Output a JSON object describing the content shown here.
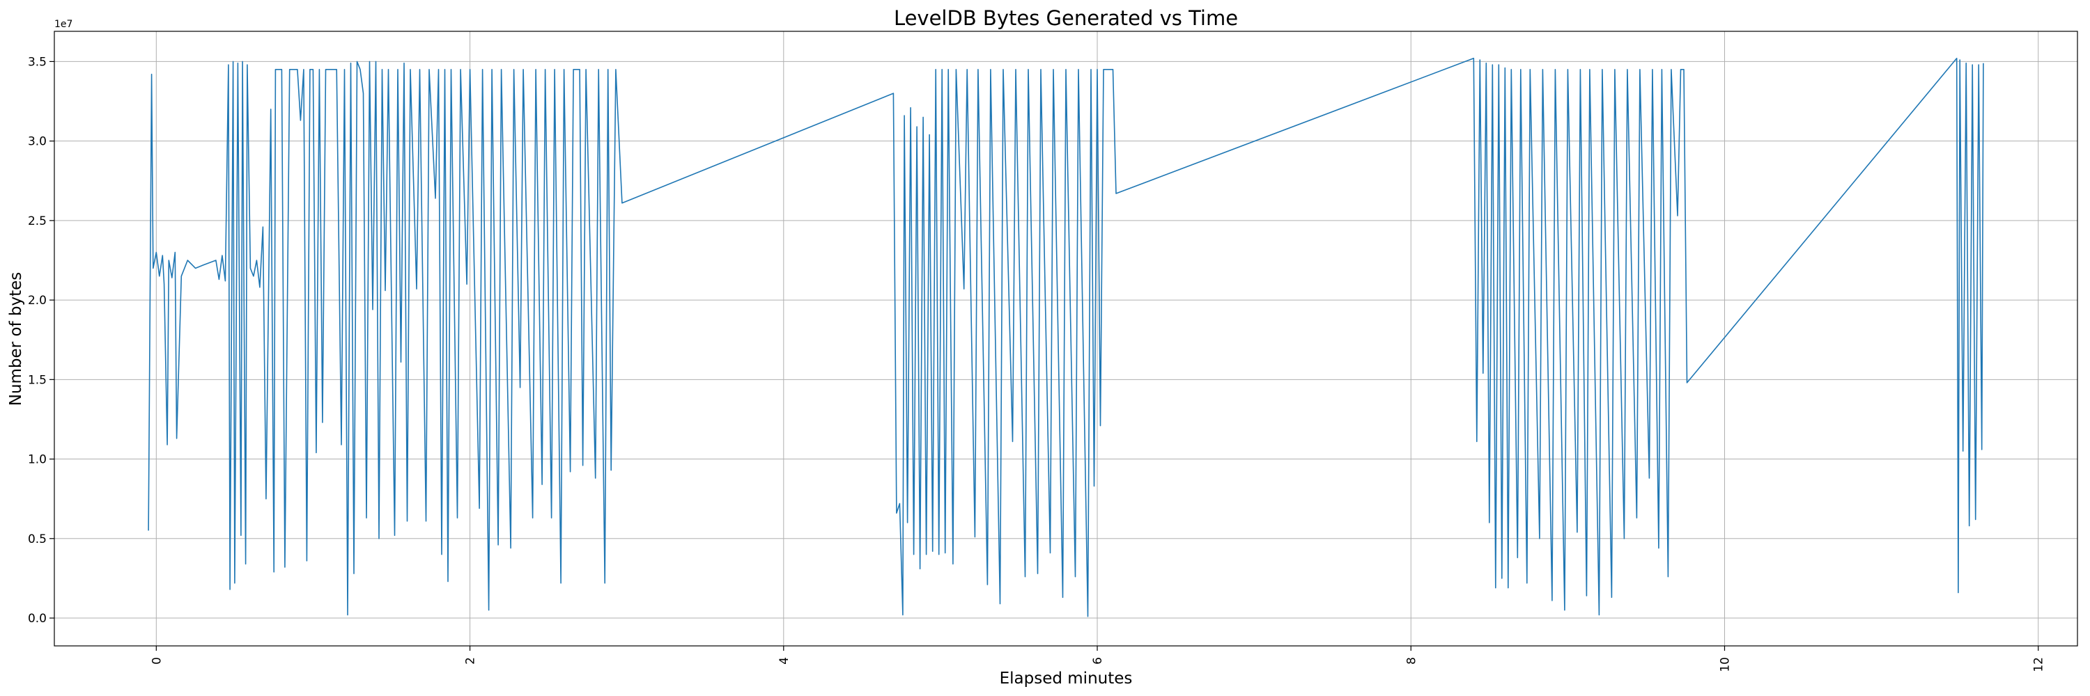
{
  "chart_data": {
    "type": "line",
    "title": "LevelDB Bytes Generated vs Time",
    "xlabel": "Elapsed minutes",
    "ylabel": "Number of bytes",
    "y_offset_label": "1e7",
    "xlim": [
      -0.65,
      12.25
    ],
    "ylim": [
      -1750000,
      36900000
    ],
    "x_ticks": [
      0,
      2,
      4,
      6,
      8,
      10,
      12
    ],
    "x_tick_labels": [
      "0",
      "2",
      "4",
      "6",
      "8",
      "10",
      "12"
    ],
    "y_ticks": [
      0,
      5000000,
      10000000,
      15000000,
      20000000,
      25000000,
      30000000,
      35000000
    ],
    "y_tick_labels": [
      "0.0",
      "0.5",
      "1.0",
      "1.5",
      "2.0",
      "2.5",
      "3.0",
      "3.5"
    ],
    "grid": true,
    "line_color": "#1f77b4",
    "series": [
      {
        "values": [
          [
            -0.05,
            5500000
          ],
          [
            -0.03,
            34200000
          ],
          [
            -0.02,
            22000000
          ],
          [
            0.0,
            23000000
          ],
          [
            0.02,
            21500000
          ],
          [
            0.04,
            22800000
          ],
          [
            0.05,
            21000000
          ],
          [
            0.07,
            10900000
          ],
          [
            0.08,
            22500000
          ],
          [
            0.1,
            21400000
          ],
          [
            0.12,
            23000000
          ],
          [
            0.13,
            11300000
          ],
          [
            0.16,
            21500000
          ],
          [
            0.2,
            22500000
          ],
          [
            0.25,
            22000000
          ],
          [
            0.3,
            22200000
          ],
          [
            0.38,
            22500000
          ],
          [
            0.4,
            21300000
          ],
          [
            0.42,
            22800000
          ],
          [
            0.44,
            21200000
          ],
          [
            0.46,
            34800000
          ],
          [
            0.47,
            1800000
          ],
          [
            0.49,
            35000000
          ],
          [
            0.5,
            2200000
          ],
          [
            0.52,
            34900000
          ],
          [
            0.54,
            5200000
          ],
          [
            0.55,
            35000000
          ],
          [
            0.57,
            3400000
          ],
          [
            0.58,
            34800000
          ],
          [
            0.6,
            22000000
          ],
          [
            0.62,
            21500000
          ],
          [
            0.64,
            22500000
          ],
          [
            0.66,
            20800000
          ],
          [
            0.68,
            24600000
          ],
          [
            0.7,
            7500000
          ],
          [
            0.73,
            32000000
          ],
          [
            0.75,
            2900000
          ],
          [
            0.76,
            34500000
          ],
          [
            0.8,
            34500000
          ],
          [
            0.82,
            3200000
          ],
          [
            0.85,
            34500000
          ],
          [
            0.9,
            34500000
          ],
          [
            0.92,
            31300000
          ],
          [
            0.94,
            34500000
          ],
          [
            0.96,
            3600000
          ],
          [
            0.98,
            34500000
          ],
          [
            1.0,
            34500000
          ],
          [
            1.02,
            10400000
          ],
          [
            1.04,
            34500000
          ],
          [
            1.06,
            12300000
          ],
          [
            1.08,
            34500000
          ],
          [
            1.15,
            34500000
          ],
          [
            1.18,
            10900000
          ],
          [
            1.2,
            34500000
          ],
          [
            1.22,
            200000
          ],
          [
            1.24,
            34900000
          ],
          [
            1.26,
            2800000
          ],
          [
            1.28,
            35000000
          ],
          [
            1.3,
            34500000
          ],
          [
            1.32,
            33000000
          ],
          [
            1.34,
            6300000
          ],
          [
            1.36,
            35000000
          ],
          [
            1.38,
            19400000
          ],
          [
            1.4,
            35000000
          ],
          [
            1.42,
            5000000
          ],
          [
            1.44,
            34500000
          ],
          [
            1.46,
            20600000
          ],
          [
            1.48,
            34500000
          ],
          [
            1.52,
            5200000
          ],
          [
            1.54,
            34500000
          ],
          [
            1.56,
            16100000
          ],
          [
            1.58,
            34900000
          ],
          [
            1.6,
            6100000
          ],
          [
            1.62,
            34500000
          ],
          [
            1.66,
            20700000
          ],
          [
            1.68,
            34500000
          ],
          [
            1.72,
            6100000
          ],
          [
            1.74,
            34500000
          ],
          [
            1.78,
            26400000
          ],
          [
            1.8,
            34500000
          ],
          [
            1.82,
            4000000
          ],
          [
            1.84,
            34500000
          ],
          [
            1.86,
            2300000
          ],
          [
            1.88,
            34500000
          ],
          [
            1.92,
            6300000
          ],
          [
            1.94,
            34500000
          ],
          [
            1.98,
            21000000
          ],
          [
            2.0,
            34500000
          ],
          [
            2.06,
            6900000
          ],
          [
            2.08,
            34500000
          ],
          [
            2.12,
            500000
          ],
          [
            2.14,
            34500000
          ],
          [
            2.18,
            4600000
          ],
          [
            2.2,
            34500000
          ],
          [
            2.26,
            4400000
          ],
          [
            2.28,
            34500000
          ],
          [
            2.32,
            14500000
          ],
          [
            2.34,
            34500000
          ],
          [
            2.4,
            6300000
          ],
          [
            2.42,
            34500000
          ],
          [
            2.46,
            8400000
          ],
          [
            2.48,
            34500000
          ],
          [
            2.52,
            6300000
          ],
          [
            2.54,
            34500000
          ],
          [
            2.58,
            2200000
          ],
          [
            2.6,
            34500000
          ],
          [
            2.64,
            9200000
          ],
          [
            2.66,
            34500000
          ],
          [
            2.7,
            34500000
          ],
          [
            2.72,
            9600000
          ],
          [
            2.74,
            34500000
          ],
          [
            2.8,
            8800000
          ],
          [
            2.82,
            34500000
          ],
          [
            2.86,
            2200000
          ],
          [
            2.88,
            34500000
          ],
          [
            2.9,
            9300000
          ],
          [
            2.93,
            34500000
          ],
          [
            2.97,
            26100000
          ],
          [
            4.7,
            33000000
          ],
          [
            4.72,
            6600000
          ],
          [
            4.74,
            7200000
          ],
          [
            4.76,
            200000
          ],
          [
            4.77,
            31600000
          ],
          [
            4.79,
            6000000
          ],
          [
            4.81,
            32100000
          ],
          [
            4.83,
            4000000
          ],
          [
            4.85,
            30900000
          ],
          [
            4.87,
            3100000
          ],
          [
            4.89,
            31500000
          ],
          [
            4.91,
            4000000
          ],
          [
            4.93,
            30400000
          ],
          [
            4.95,
            4200000
          ],
          [
            4.97,
            34500000
          ],
          [
            4.99,
            4000000
          ],
          [
            5.01,
            34500000
          ],
          [
            5.03,
            4100000
          ],
          [
            5.05,
            34500000
          ],
          [
            5.08,
            3400000
          ],
          [
            5.1,
            34500000
          ],
          [
            5.15,
            20700000
          ],
          [
            5.17,
            34500000
          ],
          [
            5.22,
            5100000
          ],
          [
            5.24,
            34500000
          ],
          [
            5.3,
            2100000
          ],
          [
            5.32,
            34500000
          ],
          [
            5.38,
            900000
          ],
          [
            5.4,
            34500000
          ],
          [
            5.46,
            11100000
          ],
          [
            5.48,
            34500000
          ],
          [
            5.54,
            2600000
          ],
          [
            5.56,
            34500000
          ],
          [
            5.62,
            2800000
          ],
          [
            5.64,
            34500000
          ],
          [
            5.7,
            4100000
          ],
          [
            5.72,
            34500000
          ],
          [
            5.78,
            1300000
          ],
          [
            5.8,
            34500000
          ],
          [
            5.86,
            2600000
          ],
          [
            5.88,
            34500000
          ],
          [
            5.94,
            100000
          ],
          [
            5.96,
            34500000
          ],
          [
            5.98,
            8300000
          ],
          [
            6.0,
            34500000
          ],
          [
            6.02,
            12100000
          ],
          [
            6.04,
            34500000
          ],
          [
            6.06,
            34500000
          ],
          [
            6.1,
            34500000
          ],
          [
            6.12,
            26700000
          ],
          [
            8.4,
            35200000
          ],
          [
            8.42,
            11100000
          ],
          [
            8.44,
            35100000
          ],
          [
            8.46,
            15400000
          ],
          [
            8.48,
            34900000
          ],
          [
            8.5,
            6000000
          ],
          [
            8.52,
            34800000
          ],
          [
            8.54,
            1900000
          ],
          [
            8.56,
            34800000
          ],
          [
            8.58,
            2500000
          ],
          [
            8.6,
            34600000
          ],
          [
            8.62,
            1900000
          ],
          [
            8.64,
            34500000
          ],
          [
            8.68,
            3800000
          ],
          [
            8.7,
            34500000
          ],
          [
            8.74,
            2200000
          ],
          [
            8.76,
            34500000
          ],
          [
            8.82,
            5000000
          ],
          [
            8.84,
            34500000
          ],
          [
            8.9,
            1100000
          ],
          [
            8.92,
            34500000
          ],
          [
            8.98,
            500000
          ],
          [
            9.0,
            34500000
          ],
          [
            9.06,
            5400000
          ],
          [
            9.08,
            34500000
          ],
          [
            9.12,
            1400000
          ],
          [
            9.14,
            34500000
          ],
          [
            9.2,
            200000
          ],
          [
            9.22,
            34500000
          ],
          [
            9.28,
            1300000
          ],
          [
            9.3,
            34500000
          ],
          [
            9.36,
            5000000
          ],
          [
            9.38,
            34500000
          ],
          [
            9.44,
            6300000
          ],
          [
            9.46,
            34500000
          ],
          [
            9.52,
            8800000
          ],
          [
            9.54,
            34500000
          ],
          [
            9.58,
            4400000
          ],
          [
            9.6,
            34500000
          ],
          [
            9.64,
            2600000
          ],
          [
            9.66,
            34500000
          ],
          [
            9.7,
            25300000
          ],
          [
            9.72,
            34500000
          ],
          [
            9.74,
            34500000
          ],
          [
            9.76,
            14800000
          ],
          [
            11.48,
            35200000
          ],
          [
            11.49,
            1600000
          ],
          [
            11.5,
            35100000
          ],
          [
            11.52,
            10500000
          ],
          [
            11.54,
            34900000
          ],
          [
            11.56,
            5800000
          ],
          [
            11.58,
            34800000
          ],
          [
            11.6,
            6200000
          ],
          [
            11.62,
            34800000
          ],
          [
            11.64,
            10600000
          ],
          [
            11.65,
            34900000
          ]
        ]
      }
    ]
  }
}
